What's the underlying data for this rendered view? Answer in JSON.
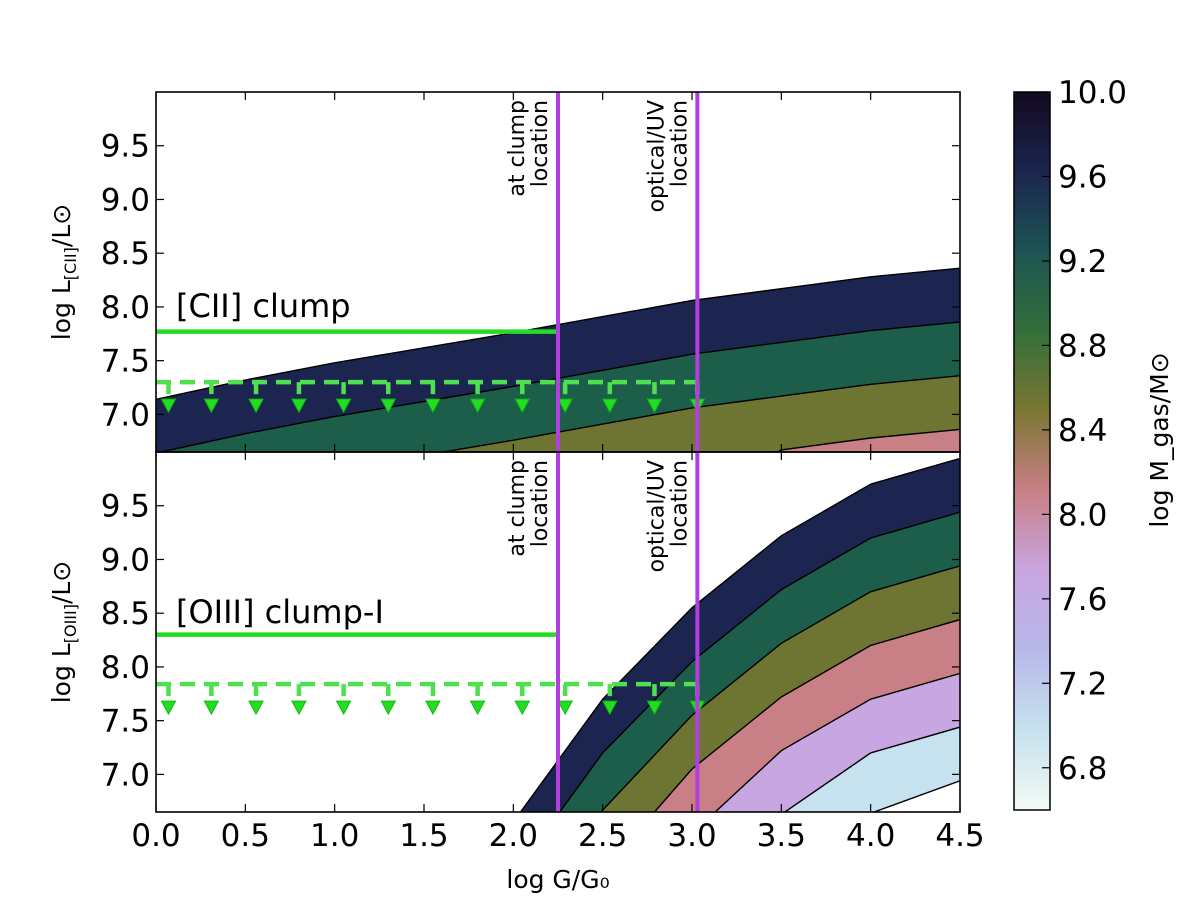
{
  "chart_data": {
    "type": "area",
    "x_axis": {
      "label": "log G/G₀",
      "range": [
        0.0,
        4.5
      ],
      "ticks": [
        "0.0",
        "0.5",
        "1.0",
        "1.5",
        "2.0",
        "2.5",
        "3.0",
        "3.5",
        "4.0",
        "4.5"
      ]
    },
    "colorbar": {
      "label": "log M_gas/M⊙",
      "range": [
        6.6,
        10.0
      ],
      "ticks": [
        "6.8",
        "7.2",
        "7.6",
        "8.0",
        "8.4",
        "8.8",
        "9.2",
        "9.6",
        "10.0"
      ],
      "colors": [
        "#f3faf5",
        "#c6e2ee",
        "#b7b8ea",
        "#c8a6e1",
        "#c97f86",
        "#7b7633",
        "#336f3a",
        "#1d5453",
        "#1c2550",
        "#130a1f"
      ]
    },
    "vertical_lines": [
      {
        "x": 2.25,
        "label_lines": [
          "at clump",
          "location"
        ],
        "color": "#b23ee0"
      },
      {
        "x": 3.03,
        "label_lines": [
          "optical/UV",
          "location"
        ],
        "color": "#b23ee0"
      }
    ],
    "panels": [
      {
        "name": "CII",
        "ylabel": "log L[CII]/L⊙",
        "ylabel_main": "log L",
        "ylabel_sub": "[CII]",
        "ylabel_tail": "/L⊙",
        "ylim": [
          6.65,
          10.0
        ],
        "yticks": [
          "7.0",
          "7.5",
          "8.0",
          "8.5",
          "9.0",
          "9.5"
        ],
        "annotation": "[CII] clump",
        "detection": {
          "y": 7.77,
          "x_range": [
            0.0,
            2.25
          ]
        },
        "upper_limit": {
          "y": 7.3,
          "x_range": [
            0.0,
            3.03
          ],
          "marker_x": [
            0.07,
            0.31,
            0.56,
            0.8,
            1.05,
            1.3,
            1.55,
            1.8,
            2.05,
            2.29,
            2.54,
            2.79,
            3.03
          ]
        },
        "model_curves": [
          {
            "log_mgas": 9.5,
            "x": [
              0.0,
              0.5,
              1.0,
              1.5,
              2.0,
              2.5,
              3.0,
              3.5,
              4.0,
              4.5
            ],
            "y": [
              7.14,
              7.32,
              7.48,
              7.62,
              7.76,
              7.91,
              8.06,
              8.17,
              8.28,
              8.36
            ]
          },
          {
            "log_mgas": 9.0,
            "x": [
              0.0,
              0.5,
              1.0,
              1.5,
              2.0,
              2.5,
              3.0,
              3.5,
              4.0,
              4.5
            ],
            "y": [
              6.64,
              6.82,
              6.98,
              7.12,
              7.26,
              7.41,
              7.56,
              7.67,
              7.78,
              7.86
            ]
          },
          {
            "log_mgas": 8.5,
            "x": [
              1.25,
              1.5,
              2.0,
              2.5,
              3.0,
              3.5,
              4.0,
              4.5
            ],
            "y": [
              6.65,
              6.62,
              6.76,
              6.91,
              7.06,
              7.17,
              7.28,
              7.36
            ]
          },
          {
            "log_mgas": 8.0,
            "x": [
              3.48,
              3.5,
              4.0,
              4.5
            ],
            "y": [
              6.65,
              6.67,
              6.78,
              6.86
            ]
          }
        ]
      },
      {
        "name": "OIII",
        "ylabel": "log L[OIII]/L⊙",
        "ylabel_main": "log L",
        "ylabel_sub": "[OIII]",
        "ylabel_tail": "/L⊙",
        "ylim": [
          6.65,
          10.0
        ],
        "yticks": [
          "7.0",
          "7.5",
          "8.0",
          "8.5",
          "9.0",
          "9.5"
        ],
        "annotation": "[OIII] clump-I",
        "detection": {
          "y": 8.3,
          "x_range": [
            0.0,
            2.25
          ]
        },
        "upper_limit": {
          "y": 7.84,
          "x_range": [
            0.0,
            3.03
          ],
          "marker_x": [
            0.07,
            0.31,
            0.56,
            0.8,
            1.05,
            1.3,
            1.55,
            1.8,
            2.05,
            2.29,
            2.54,
            2.79,
            3.03
          ]
        },
        "model_curves": [
          {
            "log_mgas": 9.5,
            "x": [
              2.04,
              2.5,
              3.0,
              3.5,
              4.0,
              4.5
            ],
            "y": [
              6.65,
              7.7,
              8.55,
              9.22,
              9.7,
              9.94
            ]
          },
          {
            "log_mgas": 9.0,
            "x": [
              2.26,
              2.5,
              3.0,
              3.5,
              4.0,
              4.5
            ],
            "y": [
              6.65,
              7.2,
              8.05,
              8.72,
              9.2,
              9.44
            ]
          },
          {
            "log_mgas": 8.5,
            "x": [
              2.49,
              3.0,
              3.5,
              4.0,
              4.5
            ],
            "y": [
              6.65,
              7.55,
              8.22,
              8.7,
              8.94
            ]
          },
          {
            "log_mgas": 8.0,
            "x": [
              2.79,
              3.0,
              3.5,
              4.0,
              4.5
            ],
            "y": [
              6.65,
              7.05,
              7.72,
              8.2,
              8.44
            ]
          },
          {
            "log_mgas": 7.5,
            "x": [
              3.13,
              3.5,
              4.0,
              4.5
            ],
            "y": [
              6.65,
              7.22,
              7.7,
              7.94
            ]
          },
          {
            "log_mgas": 7.0,
            "x": [
              3.52,
              4.0,
              4.5
            ],
            "y": [
              6.65,
              7.2,
              7.44
            ]
          },
          {
            "log_mgas": 6.5,
            "x": [
              4.02,
              4.5
            ],
            "y": [
              6.65,
              6.94
            ]
          }
        ]
      }
    ],
    "band_colors": [
      "#1c2550",
      "#1d5e4a",
      "#6e7533",
      "#c97f86",
      "#c8a6e1",
      "#c6e2ee",
      "#ffffff"
    ]
  }
}
